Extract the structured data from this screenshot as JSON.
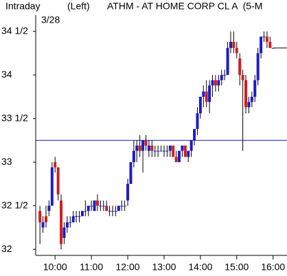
{
  "chart_data": {
    "type": "candlestick",
    "title": "ATHM - AT HOME CORP CL A  (5-M",
    "label_left": "Intraday",
    "label_mode": "(Left)",
    "subtitle": "3/28",
    "x": [
      575,
      580,
      585,
      590,
      595,
      600,
      605,
      610,
      615,
      620,
      625,
      630,
      635,
      640,
      645,
      650,
      655,
      660,
      665,
      670,
      675,
      680,
      685,
      690,
      695,
      700,
      705,
      710,
      715,
      720,
      725,
      730,
      735,
      740,
      745,
      750,
      755,
      760,
      765,
      770,
      775,
      780,
      785,
      790,
      795,
      800,
      805,
      810,
      815,
      820,
      825,
      830,
      835,
      840,
      845,
      850,
      855,
      860,
      865,
      870,
      875,
      880,
      885,
      890,
      895,
      900,
      905,
      910,
      915,
      920,
      925,
      930,
      935,
      940,
      945,
      950,
      955,
      960
    ],
    "open": [
      32.44,
      32.25,
      32.38,
      32.44,
      32.5,
      33.0,
      32.94,
      32.56,
      32.13,
      32.25,
      32.31,
      32.31,
      32.38,
      32.38,
      32.38,
      32.44,
      32.44,
      32.5,
      32.44,
      32.56,
      32.5,
      32.5,
      32.5,
      32.44,
      32.44,
      32.44,
      32.44,
      32.5,
      32.5,
      32.56,
      32.75,
      33.0,
      33.13,
      33.19,
      33.13,
      33.25,
      33.13,
      33.19,
      33.13,
      33.13,
      33.13,
      33.13,
      33.13,
      33.13,
      33.19,
      33.06,
      33.0,
      33.13,
      33.19,
      33.06,
      33.13,
      33.25,
      33.38,
      33.56,
      33.75,
      33.81,
      33.69,
      33.88,
      33.94,
      33.88,
      33.94,
      34.0,
      34.0,
      34.31,
      34.38,
      34.31,
      34.19,
      34.0,
      33.94,
      33.63,
      33.69,
      33.75,
      33.94,
      34.25,
      34.44,
      34.44,
      34.38,
      34.31
    ],
    "high": [
      32.5,
      32.38,
      32.5,
      32.56,
      33.0,
      33.06,
      32.94,
      32.63,
      32.31,
      32.38,
      32.38,
      32.44,
      32.44,
      32.44,
      32.44,
      32.56,
      32.5,
      32.56,
      32.56,
      32.63,
      32.56,
      32.56,
      32.56,
      32.5,
      32.5,
      32.5,
      32.5,
      32.56,
      32.56,
      32.81,
      33.0,
      33.25,
      33.25,
      33.31,
      33.25,
      33.31,
      33.25,
      33.25,
      33.19,
      33.19,
      33.19,
      33.19,
      33.19,
      33.19,
      33.19,
      33.13,
      33.13,
      33.19,
      33.19,
      33.13,
      33.25,
      33.38,
      33.63,
      33.75,
      33.88,
      33.94,
      33.94,
      34.0,
      34.0,
      34.0,
      34.06,
      34.06,
      34.38,
      34.5,
      34.5,
      34.38,
      34.25,
      34.06,
      34.0,
      33.75,
      33.81,
      34.0,
      34.31,
      34.44,
      34.5,
      34.5,
      34.44,
      34.31
    ],
    "low": [
      32.06,
      32.19,
      32.25,
      32.38,
      32.5,
      32.88,
      32.56,
      32.0,
      32.06,
      32.19,
      32.25,
      32.31,
      32.31,
      32.31,
      32.38,
      32.38,
      32.38,
      32.44,
      32.44,
      32.44,
      32.44,
      32.44,
      32.44,
      32.38,
      32.38,
      32.38,
      32.44,
      32.44,
      32.44,
      32.5,
      32.75,
      32.94,
      33.0,
      33.06,
      32.88,
      33.13,
      33.06,
      33.06,
      33.06,
      33.06,
      33.13,
      33.06,
      33.06,
      33.06,
      33.06,
      33.0,
      33.0,
      33.06,
      33.06,
      33.0,
      33.06,
      33.19,
      33.31,
      33.5,
      33.63,
      33.63,
      33.56,
      33.75,
      33.81,
      33.81,
      33.88,
      33.94,
      34.0,
      34.25,
      34.25,
      34.19,
      33.88,
      33.13,
      33.56,
      33.56,
      33.63,
      33.69,
      33.88,
      34.19,
      34.38,
      34.31,
      34.31,
      34.31
    ],
    "close": [
      32.31,
      32.31,
      32.31,
      32.5,
      32.94,
      32.94,
      32.63,
      32.06,
      32.25,
      32.31,
      32.31,
      32.38,
      32.38,
      32.38,
      32.44,
      32.44,
      32.5,
      32.5,
      32.56,
      32.5,
      32.5,
      32.5,
      32.44,
      32.44,
      32.44,
      32.44,
      32.5,
      32.5,
      32.5,
      32.75,
      33.0,
      33.13,
      33.19,
      33.13,
      33.25,
      33.19,
      33.19,
      33.13,
      33.13,
      33.13,
      33.13,
      33.13,
      33.13,
      33.19,
      33.06,
      33.0,
      33.13,
      33.19,
      33.06,
      33.13,
      33.25,
      33.38,
      33.56,
      33.75,
      33.81,
      33.69,
      33.88,
      33.94,
      33.88,
      33.94,
      34.0,
      34.0,
      34.31,
      34.38,
      34.31,
      34.25,
      34.0,
      33.94,
      33.63,
      33.69,
      33.75,
      33.94,
      34.25,
      34.44,
      34.44,
      34.38,
      34.31,
      34.31
    ],
    "up_color": "#1c1cc8",
    "down_color": "#cc2020",
    "wick_color": "#000000",
    "reference_line": 33.25,
    "reference_color": "#1c1cc8",
    "last_price": 34.31,
    "xlim": [
      568,
      983
    ],
    "ylim": [
      31.93,
      34.86
    ],
    "xticks": [
      {
        "value": 600,
        "label": "10:00"
      },
      {
        "value": 660,
        "label": "11:00"
      },
      {
        "value": 720,
        "label": "12:00"
      },
      {
        "value": 780,
        "label": "13:00"
      },
      {
        "value": 840,
        "label": "14:00"
      },
      {
        "value": 900,
        "label": "15:00"
      },
      {
        "value": 960,
        "label": "16:00"
      }
    ],
    "yticks": [
      {
        "value": 34.5,
        "label": "34 1/2"
      },
      34,
      {
        "value": 33.5,
        "label": "33 1/2"
      },
      33,
      {
        "value": 32.5,
        "label": "32 1/2"
      },
      32
    ]
  }
}
